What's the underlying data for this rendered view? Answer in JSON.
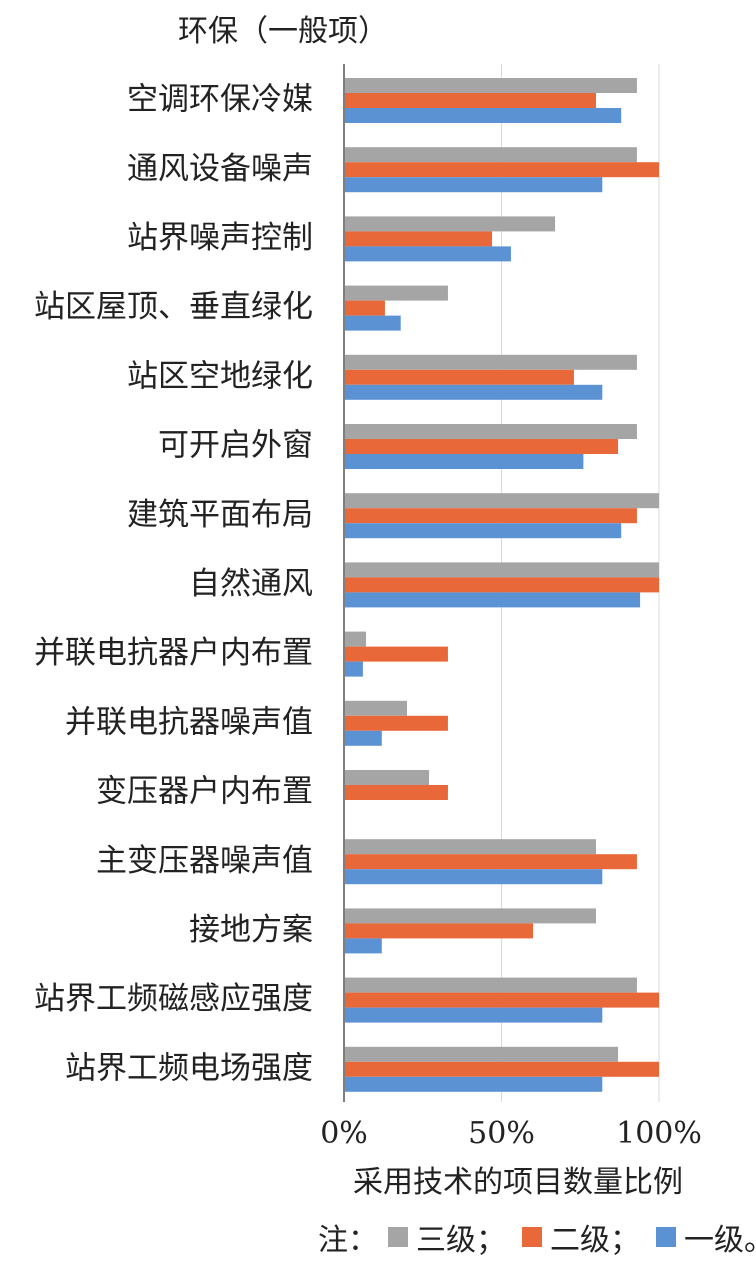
{
  "chart_data": {
    "type": "bar",
    "orientation": "horizontal",
    "title": "环保（一般项）",
    "xlabel": "采用技术的项目数量比例",
    "ylabel": "",
    "xlim": [
      0,
      100
    ],
    "xticks": [
      "0%",
      "50%",
      "100%"
    ],
    "grid": true,
    "categories": [
      "空调环保冷媒",
      "通风设备噪声",
      "站界噪声控制",
      "站区屋顶、垂直绿化",
      "站区空地绿化",
      "可开启外窗",
      "建筑平面布局",
      "自然通风",
      "并联电抗器户内布置",
      "并联电抗器噪声值",
      "变压器户内布置",
      "主变压器噪声值",
      "接地方案",
      "站界工频磁感应强度",
      "站界工频电场强度"
    ],
    "series": [
      {
        "name": "三级",
        "color": "#a5a5a5",
        "values": [
          93,
          93,
          67,
          33,
          93,
          93,
          100,
          100,
          7,
          20,
          27,
          80,
          80,
          93,
          87
        ]
      },
      {
        "name": "二级",
        "color": "#e8683a",
        "values": [
          80,
          100,
          47,
          13,
          73,
          87,
          93,
          100,
          33,
          33,
          33,
          93,
          60,
          100,
          100
        ]
      },
      {
        "name": "一级",
        "color": "#5b92d4",
        "values": [
          88,
          82,
          53,
          18,
          82,
          76,
          88,
          94,
          6,
          12,
          0,
          82,
          12,
          82,
          82
        ]
      }
    ]
  },
  "legend": {
    "prefix": "注：",
    "items": [
      {
        "label": "三级",
        "sep": "；"
      },
      {
        "label": "二级",
        "sep": "；"
      },
      {
        "label": "一级",
        "sep": "。"
      }
    ]
  }
}
